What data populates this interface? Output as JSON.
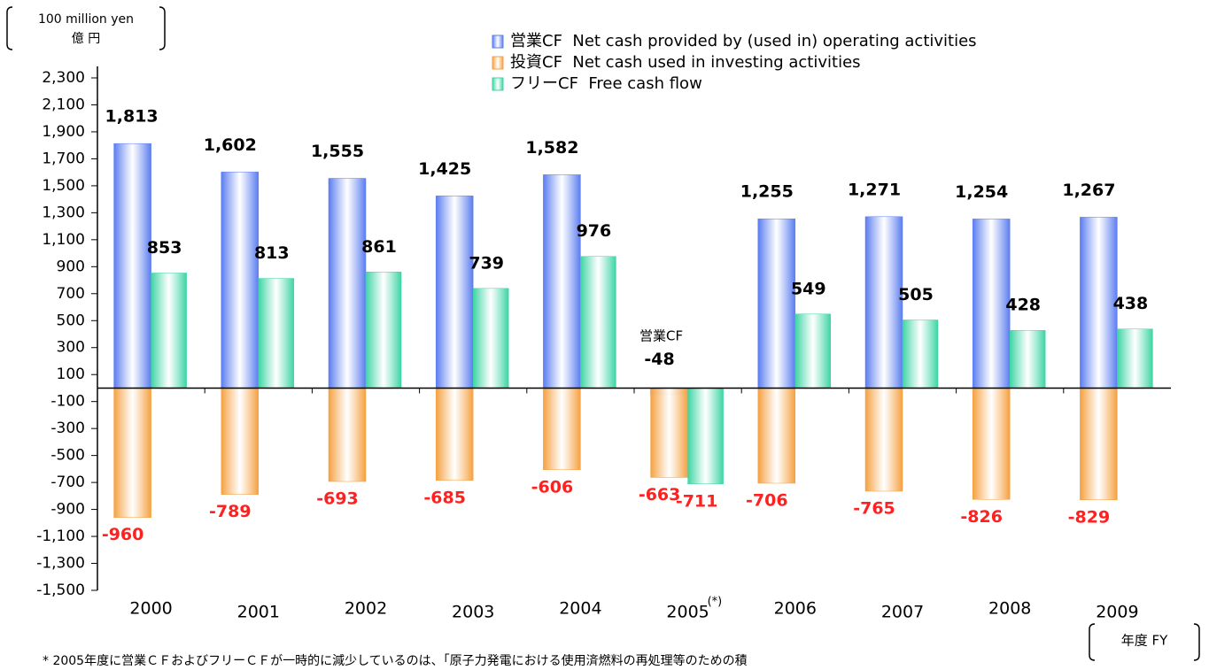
{
  "chart_data": {
    "type": "bar",
    "unit_label": [
      "100 million yen",
      "億 円"
    ],
    "x_unit": "年度 FY",
    "footnote": "* 2005年度に営業ＣＦおよびフリーＣＦが一時的に減少しているのは、「原子力発電における使用済燃料の再処理等のための積",
    "annotations": [
      {
        "text": "営業CF",
        "category": 5
      },
      {
        "text": "(*)",
        "category": 5
      }
    ],
    "categories": [
      "2000",
      "2001",
      "2002",
      "2003",
      "2004",
      "2005",
      "2006",
      "2007",
      "2008",
      "2009"
    ],
    "series": [
      {
        "name": "営業CF  Net cash provided by (used in) operating activities",
        "color": "#5a7cf0",
        "slot": 0,
        "values": [
          1813,
          1602,
          1555,
          1425,
          1582,
          -48,
          1255,
          1271,
          1254,
          1267
        ],
        "value_labels": [
          "1,813",
          "1,602",
          "1,555",
          "1,425",
          "1,582",
          "-48",
          "1,255",
          "1,271",
          "1,254",
          "1,267"
        ]
      },
      {
        "name": "投資CF  Net cash used in investing activities",
        "color": "#f5a040",
        "slot": 0,
        "values": [
          -960,
          -789,
          -693,
          -685,
          -606,
          -663,
          -706,
          -765,
          -826,
          -829
        ]
      },
      {
        "name": "フリーCF  Free cash flow",
        "color": "#3cd4a4",
        "slot": 1,
        "values": [
          853,
          813,
          861,
          739,
          976,
          -711,
          549,
          505,
          428,
          438
        ]
      }
    ],
    "ylim": [
      -1500,
      2300
    ],
    "yticks": [
      {
        "value": 2300,
        "label": "2,300"
      },
      {
        "value": 2100,
        "label": "2,100"
      },
      {
        "value": 1900,
        "label": "1,900"
      },
      {
        "value": 1700,
        "label": "1,700"
      },
      {
        "value": 1500,
        "label": "1,500"
      },
      {
        "value": 1300,
        "label": "1,300"
      },
      {
        "value": 1100,
        "label": "1,100"
      },
      900,
      700,
      500,
      300,
      100,
      -100,
      -300,
      -500,
      -700,
      -900,
      {
        "value": -1100,
        "label": "-1,100"
      },
      {
        "value": -1300,
        "label": "-1,300"
      },
      {
        "value": -1500,
        "label": "-1,500"
      }
    ]
  }
}
